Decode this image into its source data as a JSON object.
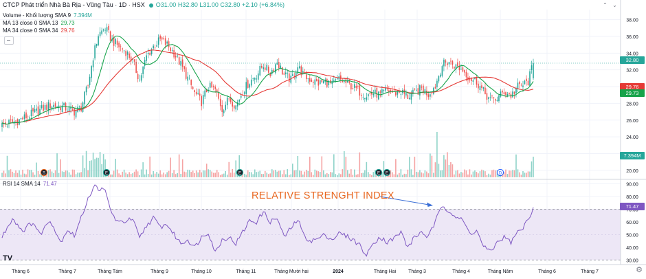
{
  "header": {
    "symbol_title": "CTCP Phát triển Nhà Bà Rịa - Vũng Tàu · 1D · HSX",
    "ohlc": {
      "o": "O31.00",
      "h": "H32.80",
      "l": "L31.00",
      "c": "C32.80",
      "change": "+2.10 (+6.84%)"
    }
  },
  "indicators": {
    "volume": {
      "label": "Volume - Khối lượng SMA 9",
      "value": "7.394M"
    },
    "ma13": {
      "label": "MA 13 close 0 SMA 13",
      "value": "29.73",
      "color": "#16a34a"
    },
    "ma34": {
      "label": "MA 34 close 0 SMA 34",
      "value": "29.76",
      "color": "#e53935"
    },
    "rsi": {
      "label": "RSI 14 SMA 14",
      "value": "71.47",
      "color": "#7e57c2"
    }
  },
  "colors": {
    "up": "#26a69a",
    "down": "#ef5350",
    "vol_up": "#8fd3c9",
    "vol_down": "#f5a3a3",
    "rsi_band": "#ede7f6"
  },
  "price_axis": [
    "38.00",
    "36.00",
    "34.00",
    "32.00",
    "30.00",
    "28.00",
    "26.00",
    "24.00",
    "22.00",
    "20.00"
  ],
  "rsi_axis": [
    "90.00",
    "80.00",
    "70.00",
    "60.00",
    "50.00",
    "40.00",
    "30.00"
  ],
  "price_tags": {
    "last": "32.80",
    "ma34": "29.76",
    "ma13": "29.73",
    "volume": "7.394M",
    "rsi": "71.47"
  },
  "time_axis": [
    "Tháng 6",
    "Tháng 7",
    "Tháng Tám",
    "Tháng 9",
    "Tháng 10",
    "Tháng 11",
    "Tháng Mười hai",
    "2024",
    "Tháng Hai",
    "Tháng 3",
    "Tháng 4",
    "Tháng Năm",
    "Tháng 6",
    "Tháng 7"
  ],
  "annotation": "RELATIVE STRENGHT INDEX",
  "event_markers": [
    "S",
    "E",
    "E",
    "E",
    "E",
    "D"
  ],
  "logo": "TV",
  "chart_data": {
    "type": "candlestick",
    "title": "",
    "y_range": [
      19,
      39.2
    ],
    "rsi_range": [
      28,
      93
    ],
    "rsi_levels": [
      30,
      70
    ],
    "price_anchors": [
      [
        0,
        25.4
      ],
      [
        10,
        26.0
      ],
      [
        20,
        27.0
      ],
      [
        28,
        27.8
      ],
      [
        35,
        27.6
      ],
      [
        42,
        27.0
      ],
      [
        46,
        27.5
      ],
      [
        50,
        30.2
      ],
      [
        53,
        33.6
      ],
      [
        56,
        36.2
      ],
      [
        60,
        37.0
      ],
      [
        64,
        35.5
      ],
      [
        68,
        34.8
      ],
      [
        72,
        34.2
      ],
      [
        76,
        33.0
      ],
      [
        80,
        30.8
      ],
      [
        84,
        33.6
      ],
      [
        88,
        34.8
      ],
      [
        92,
        35.6
      ],
      [
        96,
        35.0
      ],
      [
        100,
        34.0
      ],
      [
        104,
        32.6
      ],
      [
        108,
        31.0
      ],
      [
        112,
        29.2
      ],
      [
        116,
        28.2
      ],
      [
        120,
        30.0
      ],
      [
        124,
        29.6
      ],
      [
        128,
        27.3
      ],
      [
        132,
        28.6
      ],
      [
        136,
        27.7
      ],
      [
        140,
        29.5
      ],
      [
        144,
        30.6
      ],
      [
        148,
        31.4
      ],
      [
        152,
        32.6
      ],
      [
        156,
        31.6
      ],
      [
        160,
        33.0
      ],
      [
        164,
        31.4
      ],
      [
        168,
        30.8
      ],
      [
        172,
        32.4
      ],
      [
        176,
        31.2
      ],
      [
        180,
        30.8
      ],
      [
        184,
        30.4
      ],
      [
        188,
        30.6
      ],
      [
        192,
        30.2
      ],
      [
        196,
        30.9
      ],
      [
        200,
        30.4
      ],
      [
        204,
        30.0
      ],
      [
        208,
        29.4
      ],
      [
        212,
        29.0
      ],
      [
        216,
        29.2
      ],
      [
        220,
        29.0
      ],
      [
        224,
        29.6
      ],
      [
        228,
        29.2
      ],
      [
        232,
        29.4
      ],
      [
        236,
        28.8
      ],
      [
        240,
        29.2
      ],
      [
        244,
        29.8
      ],
      [
        248,
        29.1
      ],
      [
        252,
        30.1
      ],
      [
        256,
        32.6
      ],
      [
        260,
        33.0
      ],
      [
        264,
        32.4
      ],
      [
        268,
        32.0
      ],
      [
        272,
        31.0
      ],
      [
        276,
        30.6
      ],
      [
        280,
        29.4
      ],
      [
        284,
        28.4
      ],
      [
        288,
        28.6
      ],
      [
        292,
        29.4
      ],
      [
        296,
        28.9
      ],
      [
        300,
        30.0
      ],
      [
        303,
        30.2
      ],
      [
        306,
        30.6
      ],
      [
        309,
        32.8
      ]
    ],
    "rsi_anchors": [
      [
        0,
        48
      ],
      [
        6,
        63
      ],
      [
        12,
        53
      ],
      [
        18,
        60
      ],
      [
        22,
        50
      ],
      [
        28,
        62
      ],
      [
        34,
        44
      ],
      [
        38,
        54
      ],
      [
        42,
        49
      ],
      [
        46,
        63
      ],
      [
        50,
        79
      ],
      [
        54,
        88
      ],
      [
        60,
        84
      ],
      [
        64,
        66
      ],
      [
        68,
        59
      ],
      [
        72,
        61
      ],
      [
        76,
        62
      ],
      [
        80,
        47
      ],
      [
        84,
        57
      ],
      [
        88,
        63
      ],
      [
        92,
        56
      ],
      [
        96,
        58
      ],
      [
        100,
        50
      ],
      [
        104,
        43
      ],
      [
        108,
        46
      ],
      [
        112,
        40
      ],
      [
        116,
        48
      ],
      [
        120,
        52
      ],
      [
        124,
        36
      ],
      [
        128,
        46
      ],
      [
        132,
        48
      ],
      [
        136,
        43
      ],
      [
        140,
        52
      ],
      [
        144,
        61
      ],
      [
        148,
        60
      ],
      [
        152,
        68
      ],
      [
        156,
        60
      ],
      [
        160,
        63
      ],
      [
        164,
        48
      ],
      [
        168,
        55
      ],
      [
        172,
        62
      ],
      [
        176,
        48
      ],
      [
        180,
        45
      ],
      [
        184,
        47
      ],
      [
        188,
        50
      ],
      [
        192,
        46
      ],
      [
        196,
        51
      ],
      [
        200,
        49
      ],
      [
        204,
        46
      ],
      [
        208,
        42
      ],
      [
        212,
        33
      ],
      [
        216,
        44
      ],
      [
        220,
        48
      ],
      [
        224,
        44
      ],
      [
        228,
        47
      ],
      [
        232,
        52
      ],
      [
        236,
        40
      ],
      [
        240,
        48
      ],
      [
        244,
        52
      ],
      [
        248,
        48
      ],
      [
        252,
        60
      ],
      [
        256,
        73
      ],
      [
        260,
        69
      ],
      [
        264,
        64
      ],
      [
        268,
        61
      ],
      [
        272,
        51
      ],
      [
        276,
        53
      ],
      [
        280,
        41
      ],
      [
        284,
        36
      ],
      [
        288,
        44
      ],
      [
        292,
        48
      ],
      [
        296,
        44
      ],
      [
        300,
        52
      ],
      [
        303,
        55
      ],
      [
        306,
        62
      ],
      [
        309,
        71.47
      ]
    ]
  }
}
